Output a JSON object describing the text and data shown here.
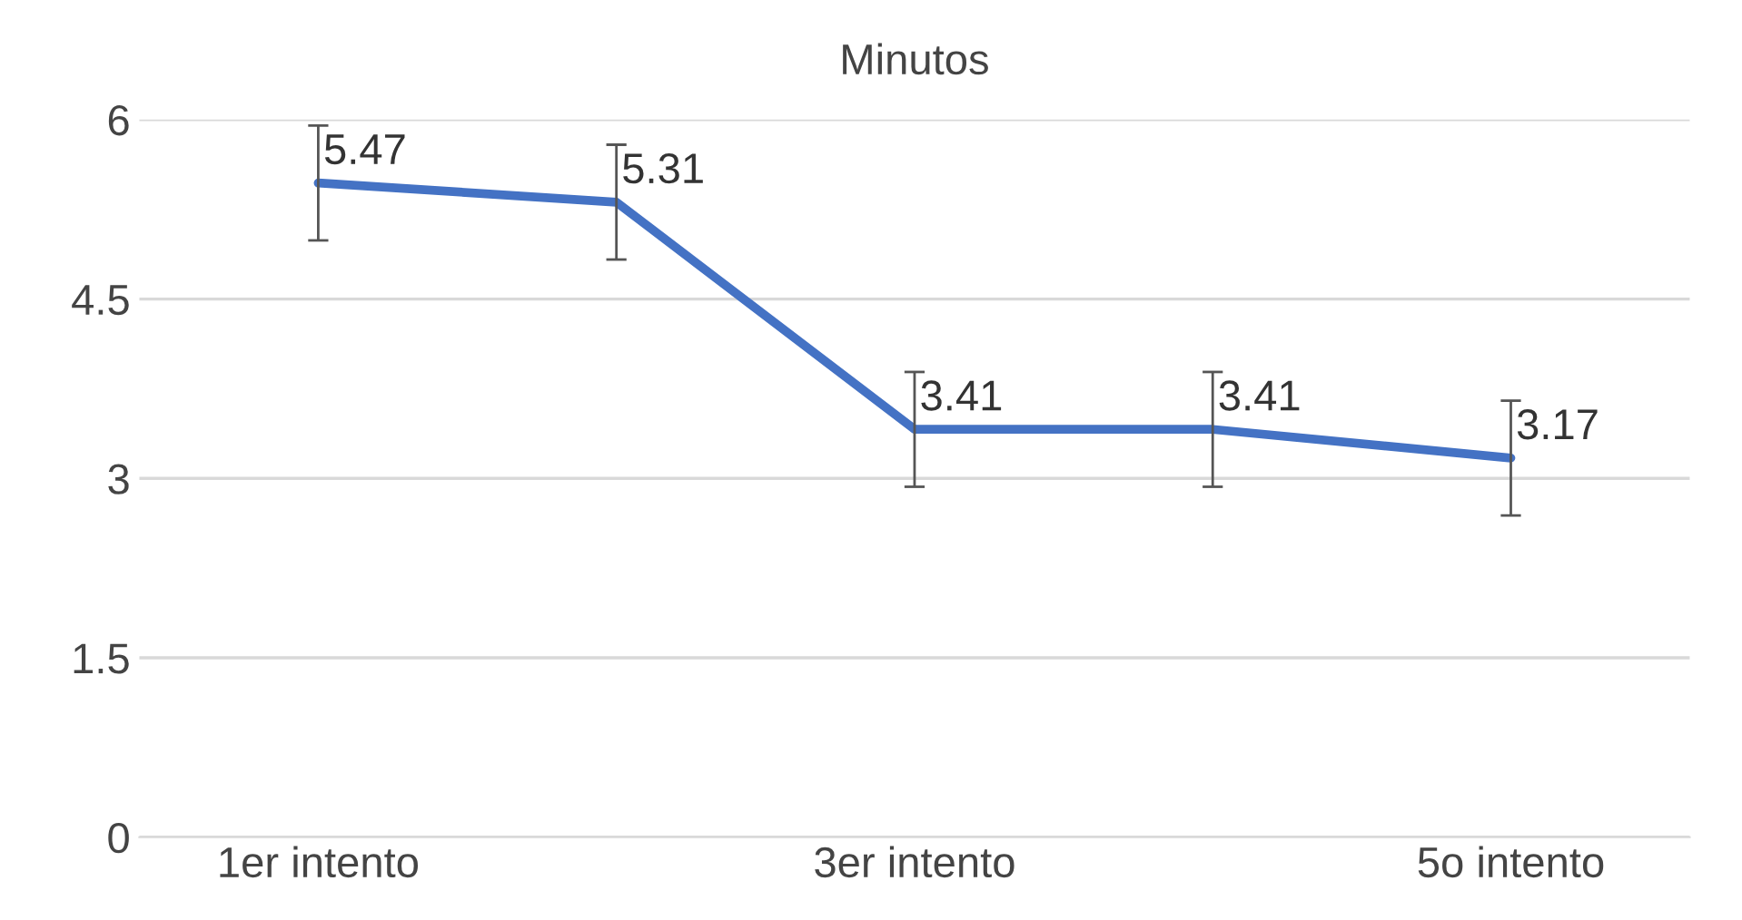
{
  "chart_data": {
    "type": "line",
    "title": "Minutos",
    "categories": [
      "1er intento",
      null,
      "3er intento",
      null,
      "5o intento"
    ],
    "series": [
      {
        "color": "#4472c4",
        "values": [
          5.47,
          5.31,
          3.41,
          3.41,
          3.17
        ],
        "errors": [
          0.48,
          0.48,
          0.48,
          0.48,
          0.48
        ]
      }
    ],
    "ylim": [
      0,
      6
    ],
    "yticks": [
      0,
      1.5,
      3,
      4.5,
      6
    ],
    "grid": "y",
    "data_labels": true,
    "marker": "none",
    "line_style": "solid",
    "legend": false
  }
}
